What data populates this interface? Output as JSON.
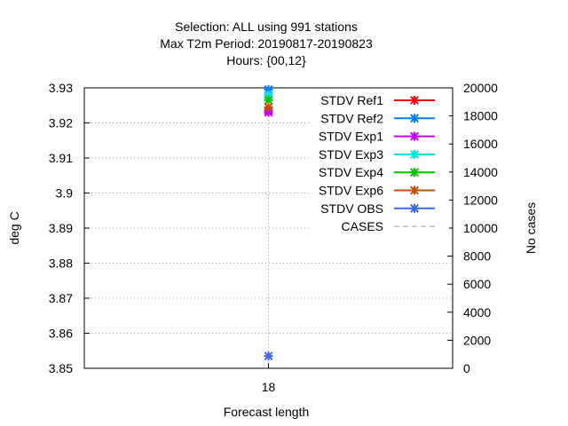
{
  "chart_data": {
    "type": "scatter",
    "title_lines": [
      "Selection: ALL using   991 stations",
      "Max T2m   Period: 20190817-20190823",
      "Hours: {00,12}"
    ],
    "xlabel": "Forecast length",
    "ylabel": "deg C",
    "y2label": "No cases",
    "categories": [
      "18"
    ],
    "ylim": [
      3.85,
      3.93
    ],
    "yticks": [
      "3.85",
      "3.86",
      "3.87",
      "3.88",
      "3.89",
      "3.9",
      "3.91",
      "3.92",
      "3.93"
    ],
    "y2lim": [
      0,
      20000
    ],
    "y2ticks": [
      "0",
      "2000",
      "4000",
      "6000",
      "8000",
      "10000",
      "12000",
      "14000",
      "16000",
      "18000",
      "20000"
    ],
    "grid": true,
    "legend_position": "top-right",
    "series": [
      {
        "name": "STDV Ref1",
        "color": "#ff0000",
        "axis": "y",
        "x": "18",
        "y": 3.9235
      },
      {
        "name": "STDV Ref2",
        "color": "#0080ff",
        "axis": "y",
        "x": "18",
        "y": 3.9295
      },
      {
        "name": "STDV Exp1",
        "color": "#c000ff",
        "axis": "y",
        "x": "18",
        "y": 3.923
      },
      {
        "name": "STDV Exp3",
        "color": "#00e0e0",
        "axis": "y",
        "x": "18",
        "y": 3.928
      },
      {
        "name": "STDV Exp4",
        "color": "#00c000",
        "axis": "y",
        "x": "18",
        "y": 3.9265
      },
      {
        "name": "STDV Exp6",
        "color": "#c05000",
        "axis": "y",
        "x": "18",
        "y": 3.9245
      },
      {
        "name": "STDV OBS",
        "color": "#4169e1",
        "axis": "y",
        "x": "18",
        "y": 3.8535
      },
      {
        "name": "CASES",
        "color": "#a0a0a0",
        "axis": "y2",
        "x": "18",
        "y": null,
        "dashed": true
      }
    ]
  }
}
